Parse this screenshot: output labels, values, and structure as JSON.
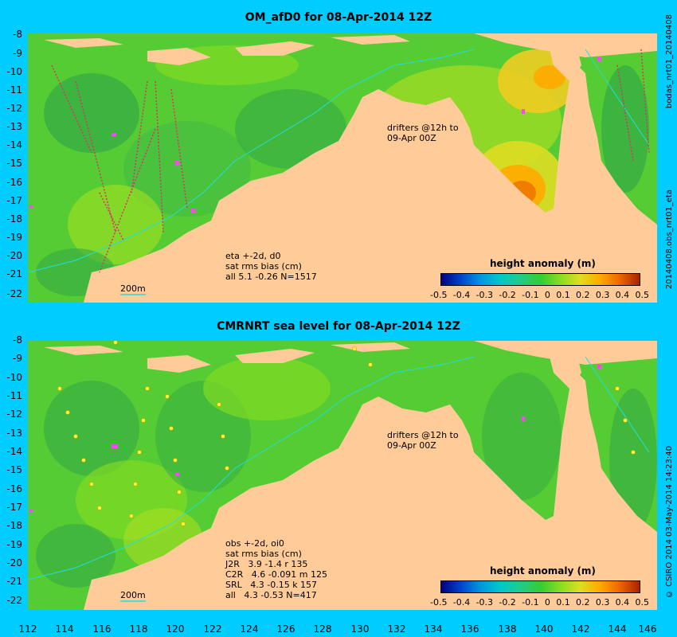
{
  "panels": [
    {
      "title": "OM_afD0 for 08-Apr-2014 12Z",
      "annotation": "eta +-2d, d0\nsat rms bias (cm)\nall 5.1 -0.26 N=1517",
      "drifters": "drifters @12h to\n09-Apr 00Z",
      "scale_label": "200m",
      "side_text": "20140408.obs_nrt01_eta",
      "side_text_top": "bodas_nrt01_20140408"
    },
    {
      "title": "CMRNRT sea level  for 08-Apr-2014 12Z",
      "annotation": "obs +-2d, oi0\nsat rms bias (cm)\nJ2R   3.9 -1.4 r 135\nC2R   4.6 -0.091 m 125\nSRL   4.3 -0.15 k 157\nall   4.3 -0.53 N=417",
      "drifters": "drifters @12h to\n09-Apr 00Z",
      "scale_label": "200m",
      "side_text": "© CSIRO 2014  03-May-2014 14:23:40"
    }
  ],
  "colorbar": {
    "title": "height anomaly (m)",
    "ticks": [
      "-0.5",
      "-0.4",
      "-0.3",
      "-0.2",
      "-0.1",
      "0",
      "0.1",
      "0.2",
      "0.3",
      "0.4",
      "0.5"
    ],
    "colors": [
      "#000080",
      "#0044cc",
      "#0099e0",
      "#00c8c8",
      "#22cc88",
      "#33cc33",
      "#88dd22",
      "#dddd22",
      "#ffaa00",
      "#ee6600",
      "#aa2200"
    ]
  },
  "y_ticks": [
    "-8",
    "-9",
    "-10",
    "-11",
    "-12",
    "-13",
    "-14",
    "-15",
    "-16",
    "-17",
    "-18",
    "-19",
    "-20",
    "-21",
    "-22"
  ],
  "x_ticks": [
    "112",
    "114",
    "116",
    "118",
    "120",
    "122",
    "124",
    "126",
    "128",
    "130",
    "132",
    "134",
    "136",
    "138",
    "140",
    "142",
    "144",
    "146"
  ],
  "colors": {
    "background": "#00ccff",
    "land": "#ffcc99",
    "sea_base": "#55cc33"
  }
}
